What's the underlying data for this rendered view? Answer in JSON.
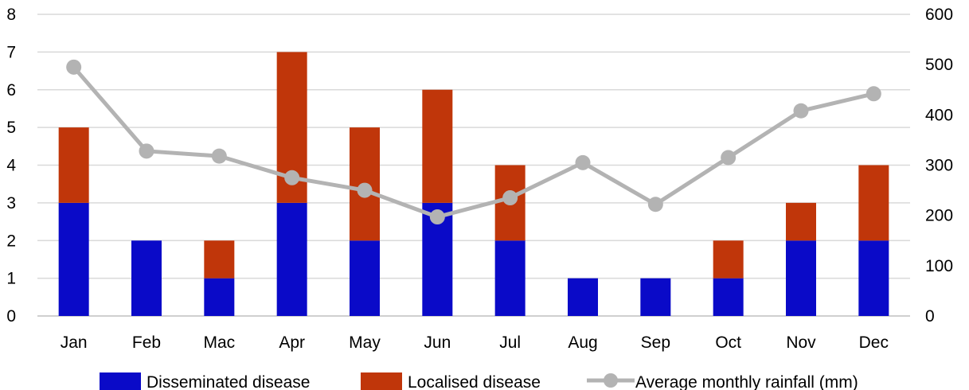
{
  "chart_data": {
    "type": "bar",
    "stacked": true,
    "categories": [
      "Jan",
      "Feb",
      "Mac",
      "Apr",
      "May",
      "Jun",
      "Jul",
      "Aug",
      "Sep",
      "Oct",
      "Nov",
      "Dec"
    ],
    "series": [
      {
        "name": "Disseminated disease",
        "type": "bar",
        "axis": "left",
        "color": "#0a0ac8",
        "values": [
          3,
          2,
          1,
          3,
          2,
          3,
          2,
          1,
          1,
          1,
          2,
          2
        ]
      },
      {
        "name": "Localised disease",
        "type": "bar",
        "axis": "left",
        "color": "#c0360a",
        "values": [
          2,
          0,
          1,
          4,
          3,
          3,
          2,
          0,
          0,
          1,
          1,
          2
        ]
      },
      {
        "name": "Average monthly rainfall (mm)",
        "type": "line",
        "axis": "right",
        "color": "#b3b3b3",
        "values": [
          495,
          328,
          318,
          275,
          250,
          197,
          235,
          305,
          222,
          315,
          408,
          442
        ]
      }
    ],
    "y_left": {
      "ylim": [
        0,
        8
      ],
      "ticks": [
        0,
        1,
        2,
        3,
        4,
        5,
        6,
        7,
        8
      ]
    },
    "y_right": {
      "ylim": [
        0,
        600
      ],
      "ticks": [
        0,
        100,
        200,
        300,
        400,
        500,
        600
      ]
    },
    "grid": true,
    "legend": "bottom"
  }
}
